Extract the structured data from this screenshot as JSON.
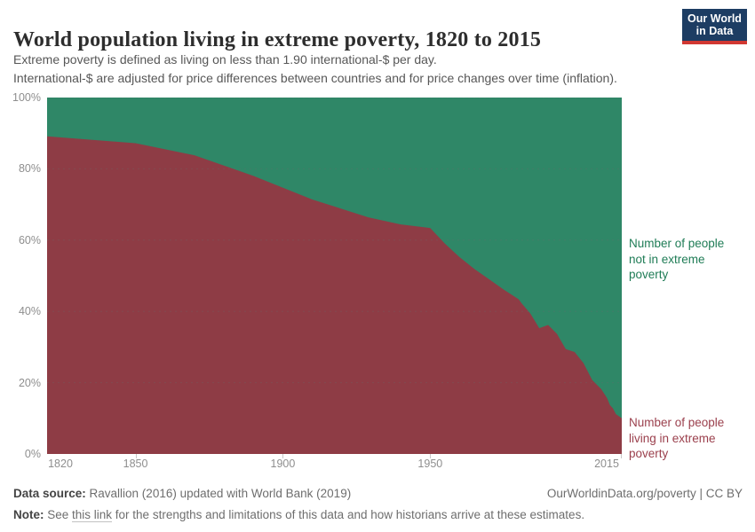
{
  "header": {
    "title": "World population living in extreme poverty, 1820 to 2015",
    "subtitle_line1": "Extreme poverty is defined as living on less than 1.90 international-$ per day.",
    "subtitle_line2": "International-$ are adjusted for price differences between countries and for price changes over time (inflation).",
    "logo": {
      "line1": "Our World",
      "line2": "in Data",
      "bg_color": "#1d3d63",
      "accent_color": "#d13832",
      "text_color": "#ffffff"
    }
  },
  "chart_data": {
    "type": "area",
    "stacked": true,
    "title": "World population living in extreme poverty, 1820 to 2015",
    "xlabel": "",
    "ylabel": "",
    "x_range": [
      1820,
      2015
    ],
    "y_range": [
      0,
      100
    ],
    "y_unit": "%",
    "grid": "dashed horizontal at 20% steps, drawn over areas",
    "legend_position": "right-edge area labels",
    "x_ticks": [
      1820,
      1850,
      1900,
      1950,
      2015
    ],
    "y_ticks": [
      {
        "value": 0,
        "label": "0%"
      },
      {
        "value": 20,
        "label": "20%"
      },
      {
        "value": 40,
        "label": "40%"
      },
      {
        "value": 60,
        "label": "60%"
      },
      {
        "value": 80,
        "label": "80%"
      },
      {
        "value": 100,
        "label": "100%"
      }
    ],
    "series": [
      {
        "name": "Number of people living in extreme poverty",
        "color": "#8e3c45",
        "label_color": "#9b404d",
        "points": [
          [
            1820,
            89.1
          ],
          [
            1850,
            87.2
          ],
          [
            1870,
            83.8
          ],
          [
            1890,
            78.0
          ],
          [
            1910,
            71.4
          ],
          [
            1929,
            66.4
          ],
          [
            1940,
            64.4
          ],
          [
            1950,
            63.4
          ],
          [
            1955,
            59.0
          ],
          [
            1960,
            55.2
          ],
          [
            1965,
            51.9
          ],
          [
            1970,
            49.0
          ],
          [
            1975,
            46.1
          ],
          [
            1980,
            43.4
          ],
          [
            1981,
            42.3
          ],
          [
            1984,
            39.4
          ],
          [
            1987,
            35.3
          ],
          [
            1990,
            36.2
          ],
          [
            1993,
            33.7
          ],
          [
            1996,
            29.4
          ],
          [
            1999,
            28.6
          ],
          [
            2002,
            25.5
          ],
          [
            2005,
            20.7
          ],
          [
            2008,
            18.2
          ],
          [
            2010,
            15.7
          ],
          [
            2011,
            13.7
          ],
          [
            2012,
            12.8
          ],
          [
            2013,
            11.2
          ],
          [
            2015,
            10.0
          ]
        ]
      },
      {
        "name": "Number of people not in extreme poverty",
        "color": "#2f8767",
        "label_color": "#1f7c56",
        "points": [
          [
            1820,
            10.9
          ],
          [
            1850,
            12.8
          ],
          [
            1870,
            16.2
          ],
          [
            1890,
            22.0
          ],
          [
            1910,
            28.6
          ],
          [
            1929,
            33.6
          ],
          [
            1940,
            35.6
          ],
          [
            1950,
            36.6
          ],
          [
            1955,
            41.0
          ],
          [
            1960,
            44.8
          ],
          [
            1965,
            48.1
          ],
          [
            1970,
            51.0
          ],
          [
            1975,
            53.9
          ],
          [
            1980,
            56.6
          ],
          [
            1981,
            57.7
          ],
          [
            1984,
            60.6
          ],
          [
            1987,
            64.7
          ],
          [
            1990,
            63.8
          ],
          [
            1993,
            66.3
          ],
          [
            1996,
            70.6
          ],
          [
            1999,
            71.4
          ],
          [
            2002,
            74.5
          ],
          [
            2005,
            79.3
          ],
          [
            2008,
            81.8
          ],
          [
            2010,
            84.3
          ],
          [
            2011,
            86.3
          ],
          [
            2012,
            87.2
          ],
          [
            2013,
            88.8
          ],
          [
            2015,
            90.0
          ]
        ]
      }
    ]
  },
  "annotations": {
    "not_poor": {
      "line1": "Number of people",
      "line2": "not in extreme",
      "line3": "poverty"
    },
    "poor": {
      "line1": "Number of people",
      "line2": "living in extreme",
      "line3": "poverty"
    }
  },
  "footer": {
    "source_label": "Data source:",
    "source_text": " Ravallion (2016) updated with World Bank (2019)",
    "right_text": "OurWorldinData.org/poverty | CC BY",
    "note_label": "Note:",
    "note_pre": " See ",
    "note_link": "this link",
    "note_post": " for the strengths and limitations of this data and how historians arrive at these estimates."
  }
}
